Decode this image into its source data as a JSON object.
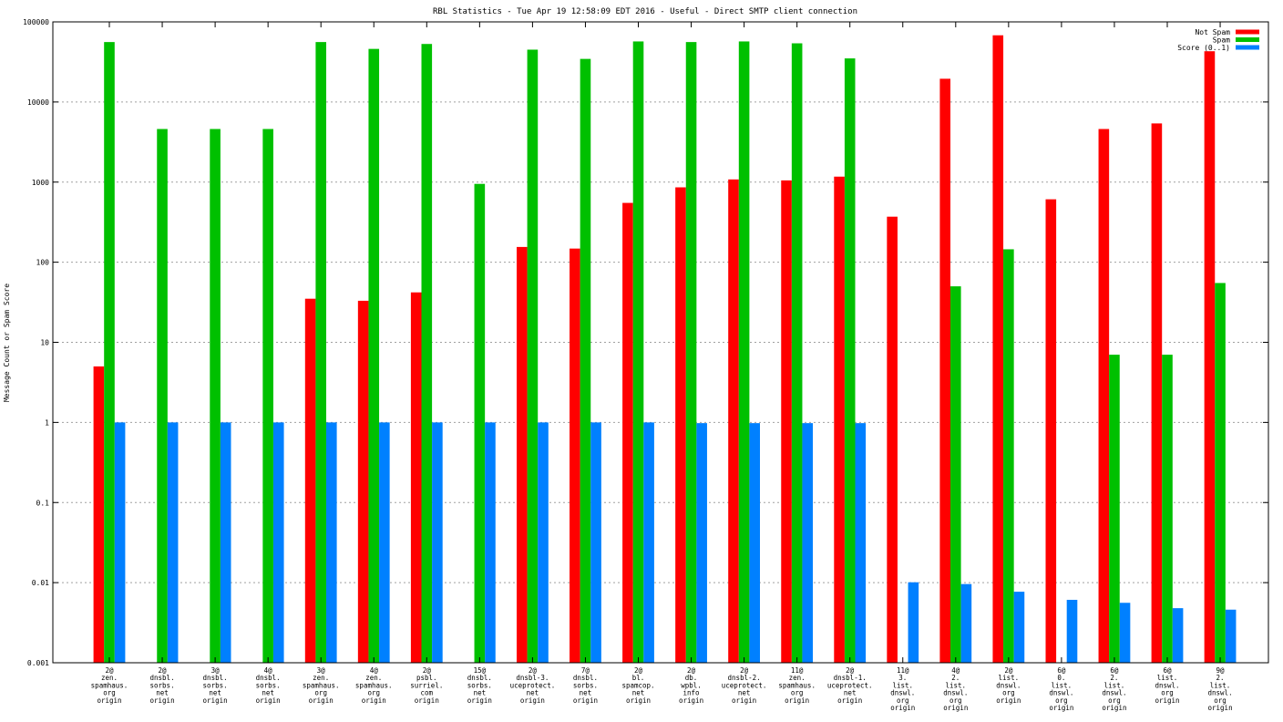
{
  "chart_data": {
    "type": "bar",
    "title": "RBL Statistics - Tue Apr 19 12:58:09 EDT 2016 - Useful - Direct SMTP client connection",
    "xlabel": "",
    "ylabel": "Message Count or Spam Score",
    "yscale": "log",
    "ylim": [
      0.001,
      100000
    ],
    "yticks": [
      "0.001",
      "0.01",
      "0.1",
      "1",
      "10",
      "100",
      "1000",
      "10000",
      "100000"
    ],
    "grid": true,
    "legend_position": "top-right",
    "categories": [
      "2@\nzen.\nspamhaus.\norg\norigin",
      "2@\ndnsbl.\nsorbs.\nnet\norigin",
      "3@\ndnsbl.\nsorbs.\nnet\norigin",
      "4@\ndnsbl.\nsorbs.\nnet\norigin",
      "3@\nzen.\nspamhaus.\norg\norigin",
      "4@\nzen.\nspamhaus.\norg\norigin",
      "2@\npsbl.\nsurriel.\ncom\norigin",
      "15@\ndnsbl.\nsorbs.\nnet\norigin",
      "2@\ndnsbl-3.\nuceprotect.\nnet\norigin",
      "7@\ndnsbl.\nsorbs.\nnet\norigin",
      "2@\nbl.\nspamcop.\nnet\norigin",
      "2@\ndb.\nwpbl.\ninfo\norigin",
      "2@\ndnsbl-2.\nuceprotect.\nnet\norigin",
      "11@\nzen.\nspamhaus.\norg\norigin",
      "2@\ndnsbl-1.\nuceprotect.\nnet\norigin",
      "11@\n3.\nlist.\ndnswl.\norg\norigin",
      "4@\n2.\nlist.\ndnswl.\norg\norigin",
      "2@\nlist.\ndnswl.\norg\norigin",
      "6@\n0.\nlist.\ndnswl.\norg\norigin",
      "6@\n2.\nlist.\ndnswl.\norg\norigin",
      "6@\nlist.\ndnswl.\norg\norigin",
      "9@\n2.\nlist.\ndnswl.\norg\norigin"
    ],
    "series": [
      {
        "name": "Not Spam",
        "color": "#ff0000",
        "values": [
          5,
          null,
          null,
          null,
          35,
          33,
          42,
          null,
          155,
          148,
          550,
          860,
          1080,
          1050,
          1170,
          370,
          19500,
          68000,
          610,
          4600,
          5400,
          43000
        ]
      },
      {
        "name": "Spam",
        "color": "#00c000",
        "values": [
          56000,
          4600,
          4600,
          4600,
          56000,
          46000,
          53000,
          950,
          45000,
          34500,
          57000,
          56000,
          57000,
          54000,
          35000,
          null,
          50,
          145,
          null,
          7,
          7,
          55
        ]
      },
      {
        "name": "Score (0..1)",
        "color": "#0080ff",
        "values": [
          1,
          1,
          1,
          1,
          1,
          1,
          1,
          1,
          1,
          1,
          1,
          0.98,
          0.98,
          0.98,
          0.98,
          0.0101,
          0.0096,
          0.0077,
          0.0061,
          0.0056,
          0.0048,
          0.0046
        ]
      }
    ]
  }
}
